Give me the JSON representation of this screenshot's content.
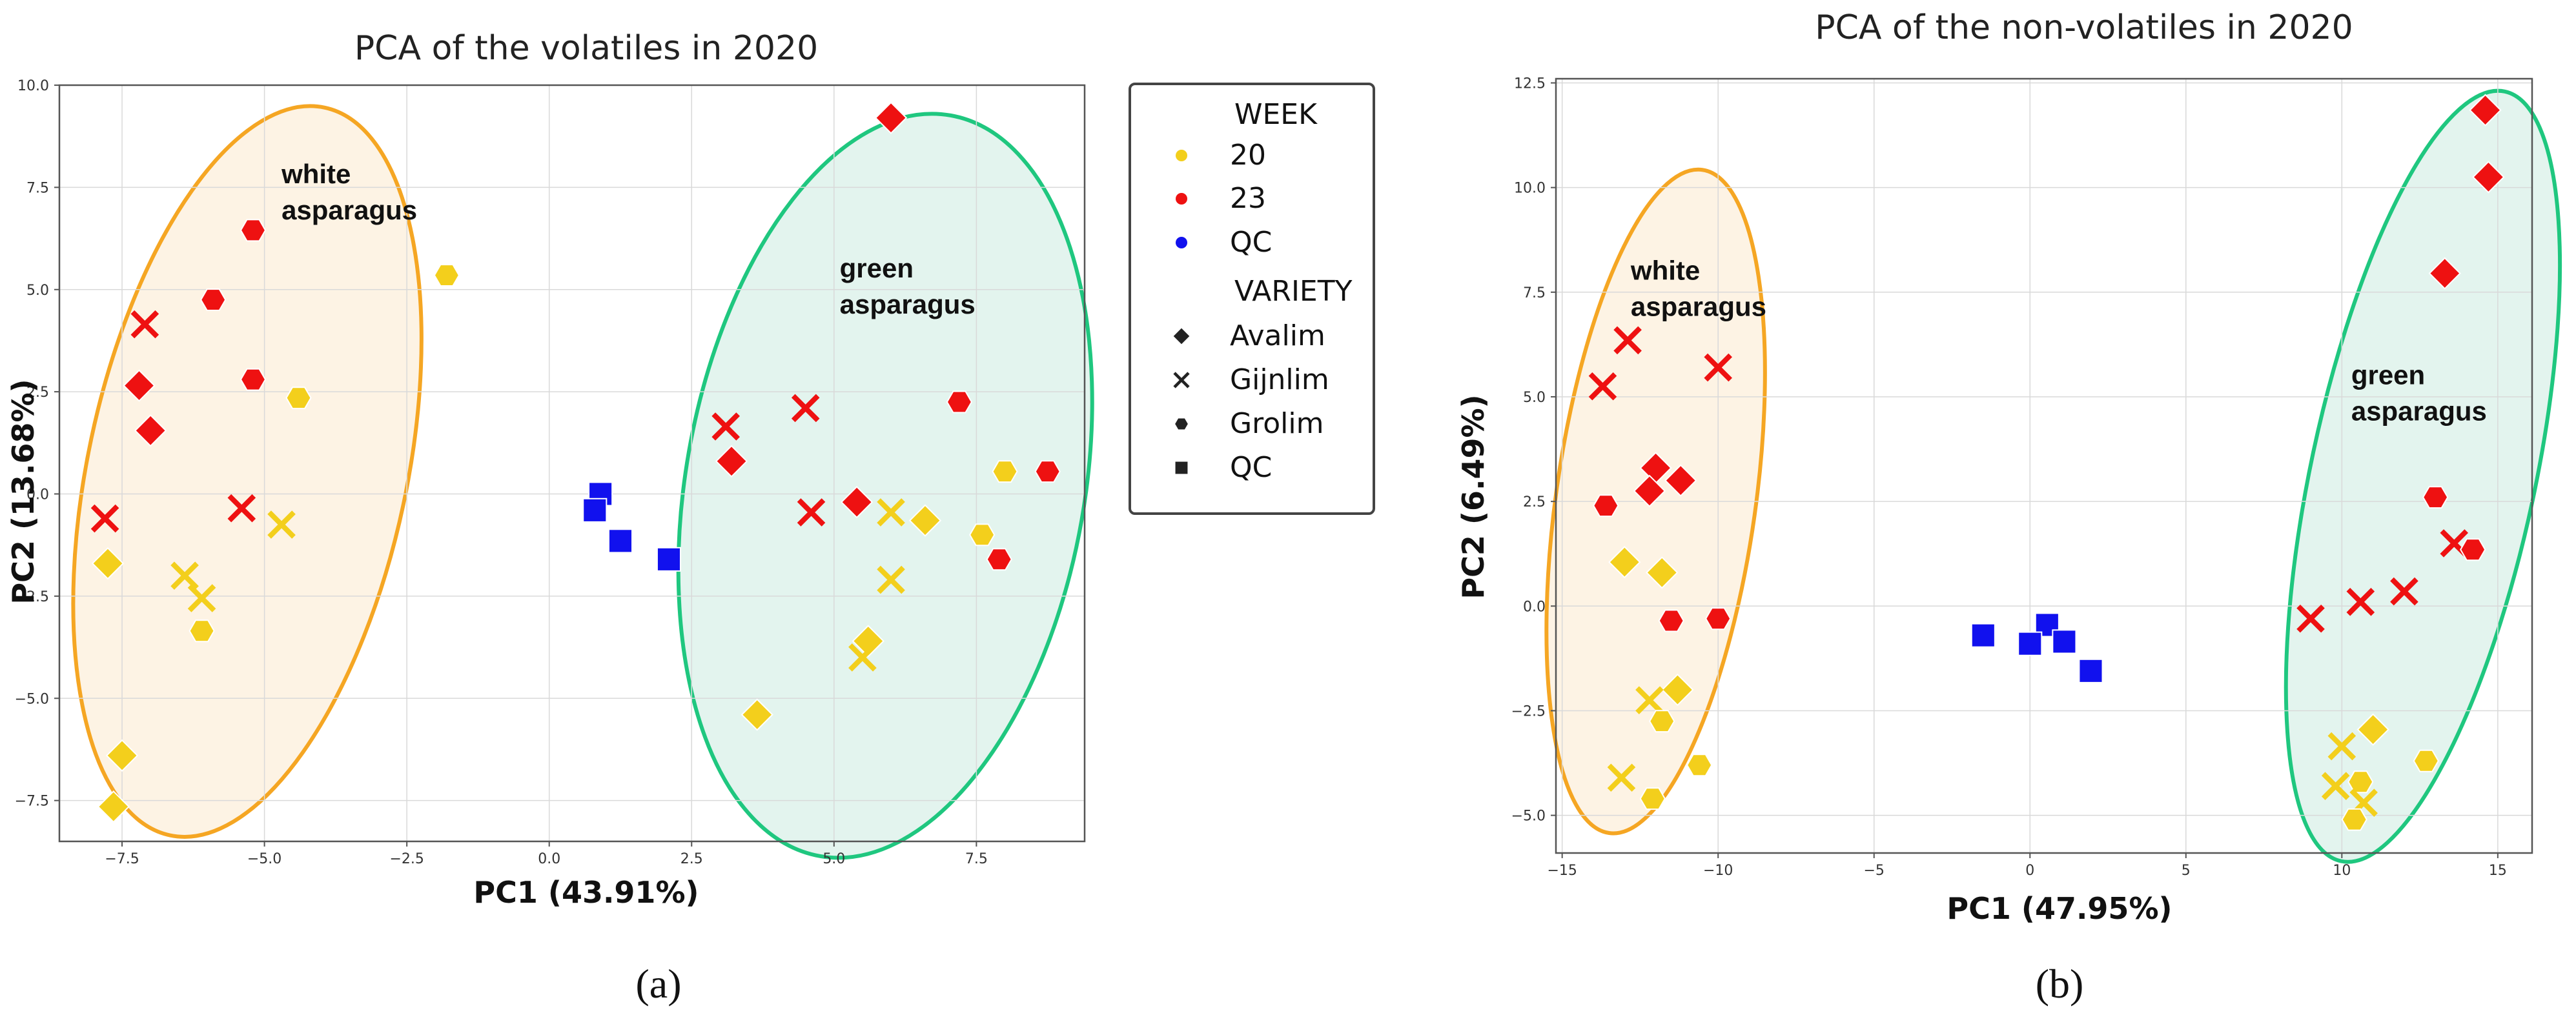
{
  "colors": {
    "week_20": "#f3cf1c",
    "week_23": "#ee1111",
    "qc": "#1111ee",
    "white_ellipse_stroke": "#f5a623",
    "white_ellipse_fill": "#fdf3e4",
    "green_ellipse_stroke": "#1fc77f",
    "green_ellipse_fill": "#e3f4ee"
  },
  "legend": {
    "week_title": "WEEK",
    "variety_title": "VARIETY",
    "entries": [
      {
        "label": "20",
        "kind": "color",
        "key": "20"
      },
      {
        "label": "23",
        "kind": "color",
        "key": "23"
      },
      {
        "label": "QC",
        "kind": "color",
        "key": "QC"
      },
      {
        "label": "Avalim",
        "kind": "shape",
        "key": "diamond"
      },
      {
        "label": "Gijnlim",
        "kind": "shape",
        "key": "x"
      },
      {
        "label": "Grolim",
        "kind": "shape",
        "key": "circle"
      },
      {
        "label": "QC",
        "kind": "shape",
        "key": "square"
      }
    ]
  },
  "chart_data": [
    {
      "type": "scatter",
      "panel_label": "(a)",
      "title": "PCA of the volatiles in 2020",
      "xlabel": "PC1 (43.91%)",
      "ylabel": "PC2 (13.68%)",
      "xlim": [
        -8.6,
        9.4
      ],
      "ylim": [
        -8.5,
        10.0
      ],
      "xticks": [
        -7.5,
        -5.0,
        -2.5,
        0.0,
        2.5,
        5.0,
        7.5
      ],
      "xtick_labels": [
        "−7.5",
        "−5.0",
        "−2.5",
        "0.0",
        "2.5",
        "5.0",
        "7.5"
      ],
      "yticks": [
        -7.5,
        -5.0,
        -2.5,
        0.0,
        2.5,
        5.0,
        7.5,
        10.0
      ],
      "ytick_labels": [
        "−7.5",
        "−5.0",
        "−2.5",
        "0.0",
        "2.5",
        "5.0",
        "7.5",
        "10.0"
      ],
      "grid": true,
      "annotations": [
        {
          "lines": [
            "white",
            "asparagus"
          ],
          "x": -4.7,
          "y": 7.6
        },
        {
          "lines": [
            "green",
            "asparagus"
          ],
          "x": 5.1,
          "y": 5.3
        }
      ],
      "ellipses": [
        {
          "group": "white",
          "cx": -5.3,
          "cy": 0.55,
          "rx": 2.8,
          "ry": 9.1,
          "rotate_deg": 12
        },
        {
          "group": "green",
          "cx": 5.9,
          "cy": 0.2,
          "rx": 3.5,
          "ry": 9.2,
          "rotate_deg": 10
        }
      ],
      "points": [
        {
          "x": 6.0,
          "y": 9.2,
          "week": "23",
          "variety": "Avalim"
        },
        {
          "x": -5.2,
          "y": 6.45,
          "week": "23",
          "variety": "Grolim"
        },
        {
          "x": -1.8,
          "y": 5.35,
          "week": "20",
          "variety": "Grolim"
        },
        {
          "x": -5.9,
          "y": 4.75,
          "week": "23",
          "variety": "Grolim"
        },
        {
          "x": -7.1,
          "y": 4.15,
          "week": "23",
          "variety": "Gijnlim"
        },
        {
          "x": -5.2,
          "y": 2.8,
          "week": "23",
          "variety": "Grolim"
        },
        {
          "x": -7.2,
          "y": 2.65,
          "week": "23",
          "variety": "Avalim"
        },
        {
          "x": -4.4,
          "y": 2.35,
          "week": "20",
          "variety": "Grolim"
        },
        {
          "x": -7.0,
          "y": 1.55,
          "week": "23",
          "variety": "Avalim"
        },
        {
          "x": 3.1,
          "y": 1.65,
          "week": "23",
          "variety": "Gijnlim"
        },
        {
          "x": 4.5,
          "y": 2.1,
          "week": "23",
          "variety": "Gijnlim"
        },
        {
          "x": 7.2,
          "y": 2.25,
          "week": "23",
          "variety": "Grolim"
        },
        {
          "x": 3.2,
          "y": 0.8,
          "week": "23",
          "variety": "Avalim"
        },
        {
          "x": 8.0,
          "y": 0.55,
          "week": "20",
          "variety": "Grolim"
        },
        {
          "x": 8.75,
          "y": 0.55,
          "week": "23",
          "variety": "Grolim"
        },
        {
          "x": 5.4,
          "y": -0.2,
          "week": "23",
          "variety": "Avalim"
        },
        {
          "x": 4.6,
          "y": -0.45,
          "week": "23",
          "variety": "Gijnlim"
        },
        {
          "x": 6.0,
          "y": -0.45,
          "week": "20",
          "variety": "Gijnlim"
        },
        {
          "x": 6.6,
          "y": -0.65,
          "week": "20",
          "variety": "Avalim"
        },
        {
          "x": 7.6,
          "y": -1.0,
          "week": "20",
          "variety": "Grolim"
        },
        {
          "x": 7.9,
          "y": -1.6,
          "week": "23",
          "variety": "Grolim"
        },
        {
          "x": -7.8,
          "y": -0.6,
          "week": "23",
          "variety": "Gijnlim"
        },
        {
          "x": -5.4,
          "y": -0.35,
          "week": "23",
          "variety": "Gijnlim"
        },
        {
          "x": -4.7,
          "y": -0.75,
          "week": "20",
          "variety": "Gijnlim"
        },
        {
          "x": -7.75,
          "y": -1.7,
          "week": "20",
          "variety": "Avalim"
        },
        {
          "x": -6.4,
          "y": -2.0,
          "week": "20",
          "variety": "Gijnlim"
        },
        {
          "x": -6.1,
          "y": -2.55,
          "week": "20",
          "variety": "Gijnlim"
        },
        {
          "x": -6.1,
          "y": -3.35,
          "week": "20",
          "variety": "Grolim"
        },
        {
          "x": 6.0,
          "y": -2.1,
          "week": "20",
          "variety": "Gijnlim"
        },
        {
          "x": 5.6,
          "y": -3.6,
          "week": "20",
          "variety": "Avalim"
        },
        {
          "x": 5.5,
          "y": -4.0,
          "week": "20",
          "variety": "Gijnlim"
        },
        {
          "x": 3.65,
          "y": -5.4,
          "week": "20",
          "variety": "Avalim"
        },
        {
          "x": -7.5,
          "y": -6.4,
          "week": "20",
          "variety": "Avalim"
        },
        {
          "x": -7.65,
          "y": -7.65,
          "week": "20",
          "variety": "Avalim"
        },
        {
          "x": 0.9,
          "y": 0.0,
          "week": "QC",
          "variety": "QC"
        },
        {
          "x": 0.8,
          "y": -0.4,
          "week": "QC",
          "variety": "QC"
        },
        {
          "x": 1.25,
          "y": -1.15,
          "week": "QC",
          "variety": "QC"
        },
        {
          "x": 2.1,
          "y": -1.6,
          "week": "QC",
          "variety": "QC"
        }
      ]
    },
    {
      "type": "scatter",
      "panel_label": "(b)",
      "title": "PCA of the non-volatiles in 2020",
      "xlabel": "PC1 (47.95%)",
      "ylabel": "PC2 (6.49%)",
      "xlim": [
        -15.2,
        16.1
      ],
      "ylim": [
        -5.9,
        12.6
      ],
      "xticks": [
        -15,
        -10,
        -5,
        0,
        5,
        10,
        15
      ],
      "xtick_labels": [
        "−15",
        "−10",
        "−5",
        "0",
        "5",
        "10",
        "15"
      ],
      "yticks": [
        -5.0,
        -2.5,
        0.0,
        2.5,
        5.0,
        7.5,
        10.0,
        12.5
      ],
      "ytick_labels": [
        "−5.0",
        "−2.5",
        "0.0",
        "2.5",
        "5.0",
        "7.5",
        "10.0",
        "12.5"
      ],
      "grid": true,
      "annotations": [
        {
          "lines": [
            "white",
            "asparagus"
          ],
          "x": -12.8,
          "y": 7.8
        },
        {
          "lines": [
            "green",
            "asparagus"
          ],
          "x": 10.3,
          "y": 5.3
        }
      ],
      "ellipses": [
        {
          "group": "white",
          "cx": -12.0,
          "cy": 2.5,
          "rx": 3.2,
          "ry": 8.0,
          "rotate_deg": 8
        },
        {
          "group": "green",
          "cx": 12.6,
          "cy": 3.1,
          "rx": 3.6,
          "ry": 9.4,
          "rotate_deg": 12
        }
      ],
      "points": [
        {
          "x": 14.6,
          "y": 11.85,
          "week": "23",
          "variety": "Avalim"
        },
        {
          "x": 14.7,
          "y": 10.25,
          "week": "23",
          "variety": "Avalim"
        },
        {
          "x": 13.3,
          "y": 7.95,
          "week": "23",
          "variety": "Avalim"
        },
        {
          "x": 13.0,
          "y": 2.6,
          "week": "23",
          "variety": "Grolim"
        },
        {
          "x": 13.6,
          "y": 1.5,
          "week": "23",
          "variety": "Gijnlim"
        },
        {
          "x": 14.2,
          "y": 1.35,
          "week": "23",
          "variety": "Grolim"
        },
        {
          "x": 12.0,
          "y": 0.35,
          "week": "23",
          "variety": "Gijnlim"
        },
        {
          "x": 10.6,
          "y": 0.1,
          "week": "23",
          "variety": "Gijnlim"
        },
        {
          "x": 9.0,
          "y": -0.3,
          "week": "23",
          "variety": "Gijnlim"
        },
        {
          "x": 11.0,
          "y": -2.95,
          "week": "20",
          "variety": "Avalim"
        },
        {
          "x": 10.0,
          "y": -3.35,
          "week": "20",
          "variety": "Gijnlim"
        },
        {
          "x": 12.7,
          "y": -3.7,
          "week": "20",
          "variety": "Grolim"
        },
        {
          "x": 9.8,
          "y": -4.3,
          "week": "20",
          "variety": "Gijnlim"
        },
        {
          "x": 10.6,
          "y": -4.2,
          "week": "20",
          "variety": "Grolim"
        },
        {
          "x": 10.7,
          "y": -4.7,
          "week": "20",
          "variety": "Gijnlim"
        },
        {
          "x": 10.4,
          "y": -5.1,
          "week": "20",
          "variety": "Grolim"
        },
        {
          "x": -13.7,
          "y": 5.25,
          "week": "23",
          "variety": "Gijnlim"
        },
        {
          "x": -12.9,
          "y": 6.35,
          "week": "23",
          "variety": "Gijnlim"
        },
        {
          "x": -10.0,
          "y": 5.7,
          "week": "23",
          "variety": "Gijnlim"
        },
        {
          "x": -12.0,
          "y": 3.3,
          "week": "23",
          "variety": "Avalim"
        },
        {
          "x": -11.2,
          "y": 3.0,
          "week": "23",
          "variety": "Avalim"
        },
        {
          "x": -12.2,
          "y": 2.75,
          "week": "23",
          "variety": "Avalim"
        },
        {
          "x": -13.6,
          "y": 2.4,
          "week": "23",
          "variety": "Grolim"
        },
        {
          "x": -13.0,
          "y": 1.05,
          "week": "20",
          "variety": "Avalim"
        },
        {
          "x": -11.8,
          "y": 0.8,
          "week": "20",
          "variety": "Avalim"
        },
        {
          "x": -11.5,
          "y": -0.35,
          "week": "23",
          "variety": "Grolim"
        },
        {
          "x": -10.0,
          "y": -0.3,
          "week": "23",
          "variety": "Grolim"
        },
        {
          "x": -11.3,
          "y": -2.0,
          "week": "20",
          "variety": "Avalim"
        },
        {
          "x": -12.2,
          "y": -2.25,
          "week": "20",
          "variety": "Gijnlim"
        },
        {
          "x": -11.8,
          "y": -2.75,
          "week": "20",
          "variety": "Grolim"
        },
        {
          "x": -10.6,
          "y": -3.8,
          "week": "20",
          "variety": "Grolim"
        },
        {
          "x": -13.1,
          "y": -4.1,
          "week": "20",
          "variety": "Gijnlim"
        },
        {
          "x": -12.1,
          "y": -4.6,
          "week": "20",
          "variety": "Grolim"
        },
        {
          "x": -1.5,
          "y": -0.7,
          "week": "QC",
          "variety": "QC"
        },
        {
          "x": 0.55,
          "y": -0.45,
          "week": "QC",
          "variety": "QC"
        },
        {
          "x": 0.0,
          "y": -0.9,
          "week": "QC",
          "variety": "QC"
        },
        {
          "x": 1.1,
          "y": -0.85,
          "week": "QC",
          "variety": "QC"
        },
        {
          "x": 1.95,
          "y": -1.55,
          "week": "QC",
          "variety": "QC"
        }
      ]
    }
  ]
}
